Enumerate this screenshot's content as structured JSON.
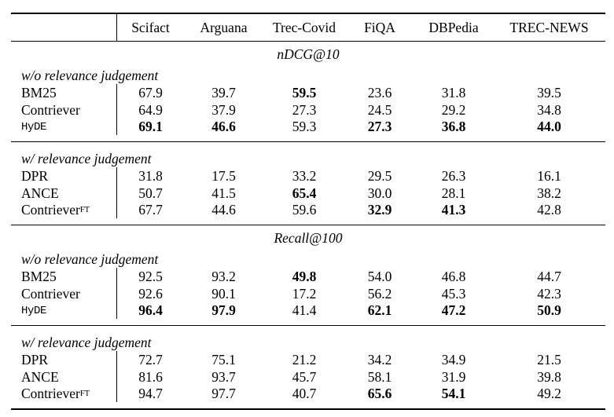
{
  "colors": {
    "text": "#000000",
    "background": "#ffffff",
    "rule": "#000000"
  },
  "table": {
    "columns": [
      "Scifact",
      "Arguana",
      "Trec-Covid",
      "FiQA",
      "DBPedia",
      "TREC-NEWS"
    ],
    "sections": [
      {
        "metric": "nDCG@10",
        "groups": [
          {
            "label": "w/o relevance judgement",
            "rows": [
              {
                "name": "BM25",
                "values": [
                  "67.9",
                  "39.7",
                  "59.5",
                  "23.6",
                  "31.8",
                  "39.5"
                ],
                "bold": [
                  false,
                  false,
                  true,
                  false,
                  false,
                  false
                ]
              },
              {
                "name": "Contriever",
                "values": [
                  "64.9",
                  "37.9",
                  "27.3",
                  "24.5",
                  "29.2",
                  "34.8"
                ],
                "bold": [
                  false,
                  false,
                  false,
                  false,
                  false,
                  false
                ]
              },
              {
                "name": "HyDE",
                "font": "mono",
                "values": [
                  "69.1",
                  "46.6",
                  "59.3",
                  "27.3",
                  "36.8",
                  "44.0"
                ],
                "bold": [
                  true,
                  true,
                  false,
                  true,
                  true,
                  true
                ]
              }
            ]
          },
          {
            "label": "w/ relevance judgement",
            "rows": [
              {
                "name": "DPR",
                "values": [
                  "31.8",
                  "17.5",
                  "33.2",
                  "29.5",
                  "26.3",
                  "16.1"
                ],
                "bold": [
                  false,
                  false,
                  false,
                  false,
                  false,
                  false
                ]
              },
              {
                "name": "ANCE",
                "values": [
                  "50.7",
                  "41.5",
                  "65.4",
                  "30.0",
                  "28.1",
                  "38.2"
                ],
                "bold": [
                  false,
                  false,
                  true,
                  false,
                  false,
                  false
                ]
              },
              {
                "name": "Contriever",
                "sup": "FT",
                "values": [
                  "67.7",
                  "44.6",
                  "59.6",
                  "32.9",
                  "41.3",
                  "42.8"
                ],
                "bold": [
                  false,
                  false,
                  false,
                  true,
                  true,
                  false
                ]
              }
            ]
          }
        ]
      },
      {
        "metric": "Recall@100",
        "groups": [
          {
            "label": "w/o relevance judgement",
            "rows": [
              {
                "name": "BM25",
                "values": [
                  "92.5",
                  "93.2",
                  "49.8",
                  "54.0",
                  "46.8",
                  "44.7"
                ],
                "bold": [
                  false,
                  false,
                  true,
                  false,
                  false,
                  false
                ]
              },
              {
                "name": "Contriever",
                "values": [
                  "92.6",
                  "90.1",
                  "17.2",
                  "56.2",
                  "45.3",
                  "42.3"
                ],
                "bold": [
                  false,
                  false,
                  false,
                  false,
                  false,
                  false
                ]
              },
              {
                "name": "HyDE",
                "font": "mono",
                "values": [
                  "96.4",
                  "97.9",
                  "41.4",
                  "62.1",
                  "47.2",
                  "50.9"
                ],
                "bold": [
                  true,
                  true,
                  false,
                  true,
                  true,
                  true
                ]
              }
            ]
          },
          {
            "label": "w/ relevance judgement",
            "rows": [
              {
                "name": "DPR",
                "values": [
                  "72.7",
                  "75.1",
                  "21.2",
                  "34.2",
                  "34.9",
                  "21.5"
                ],
                "bold": [
                  false,
                  false,
                  false,
                  false,
                  false,
                  false
                ]
              },
              {
                "name": "ANCE",
                "values": [
                  "81.6",
                  "93.7",
                  "45.7",
                  "58.1",
                  "31.9",
                  "39.8"
                ],
                "bold": [
                  false,
                  false,
                  false,
                  false,
                  false,
                  false
                ]
              },
              {
                "name": "Contriever",
                "sup": "FT",
                "values": [
                  "94.7",
                  "97.7",
                  "40.7",
                  "65.6",
                  "54.1",
                  "49.2"
                ],
                "bold": [
                  false,
                  false,
                  false,
                  true,
                  true,
                  false
                ]
              }
            ]
          }
        ]
      }
    ]
  }
}
